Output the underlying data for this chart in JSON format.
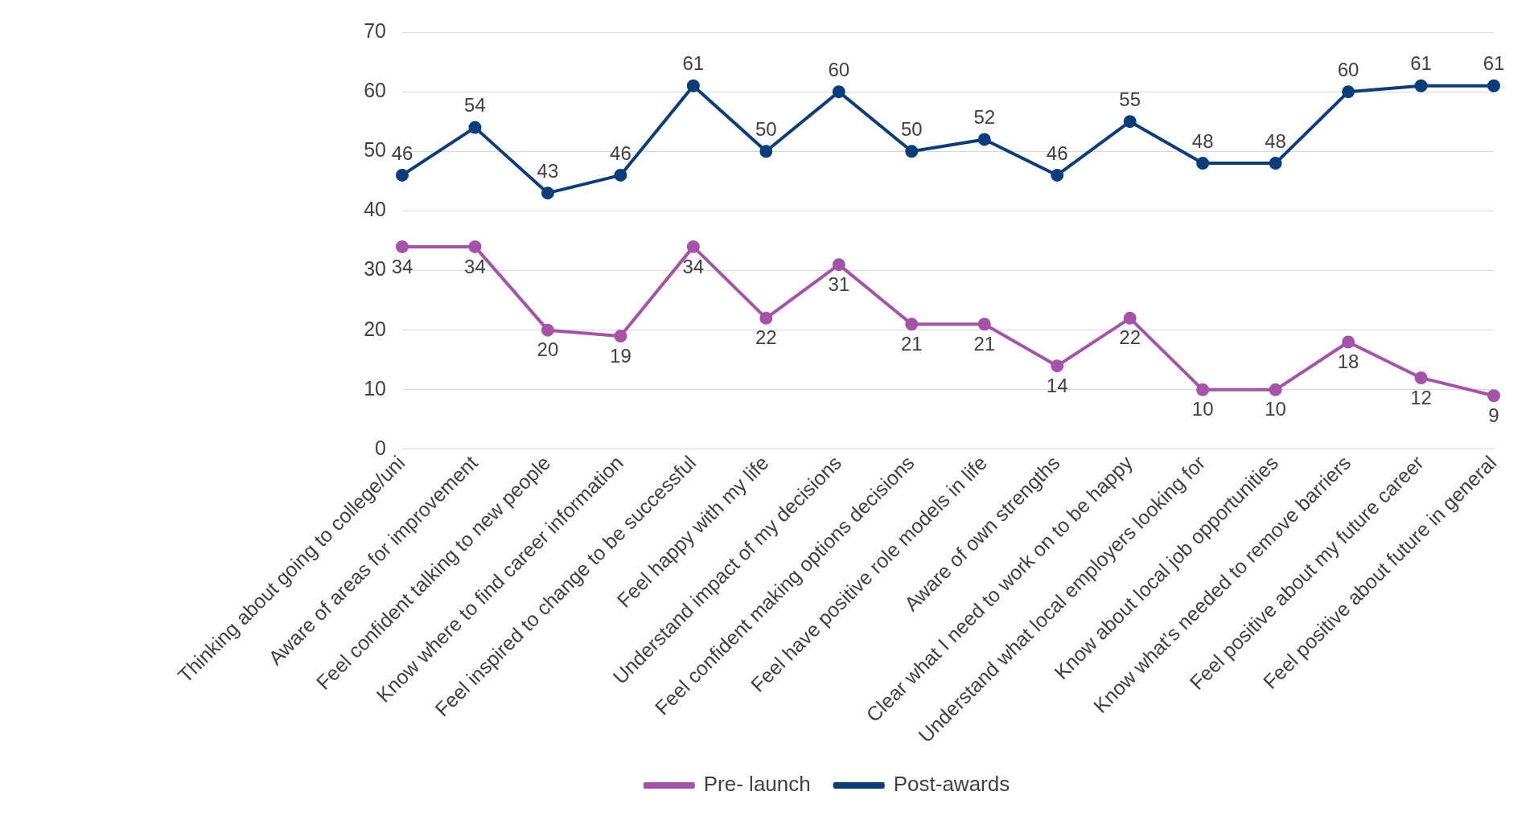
{
  "chart_data": {
    "type": "line",
    "categories": [
      "Thinking about going to college/uni",
      "Aware of areas for improvement",
      "Feel confident talking to new people",
      "Know where to find career information",
      "Feel inspired to change to be successful",
      "Feel happy with my life",
      "Understand impact of my decisions",
      "Feel confident making options decisions",
      "Feel have positive role models in life",
      "Aware of own strengths",
      "Clear what I need to work on to be happy",
      "Understand what local employers looking for",
      "Know about local job opportunities",
      "Know what’s needed to remove barriers",
      "Feel positive about my future career",
      "Feel positive about future in general"
    ],
    "series": [
      {
        "name": "Pre- launch",
        "color": "#a453a8",
        "values": [
          34,
          34,
          20,
          19,
          34,
          22,
          31,
          21,
          21,
          14,
          22,
          10,
          10,
          18,
          12,
          9
        ]
      },
      {
        "name": "Post-awards",
        "color": "#0b3d7c",
        "values": [
          46,
          54,
          43,
          46,
          61,
          50,
          60,
          50,
          52,
          46,
          55,
          48,
          48,
          60,
          61,
          61
        ]
      }
    ],
    "ylim": [
      0,
      70
    ],
    "yticks": [
      0,
      10,
      20,
      30,
      40,
      50,
      60,
      70
    ],
    "grid": "y",
    "legend": "bottom",
    "marker": "circle",
    "line_style": "solid",
    "data_labels": true
  }
}
